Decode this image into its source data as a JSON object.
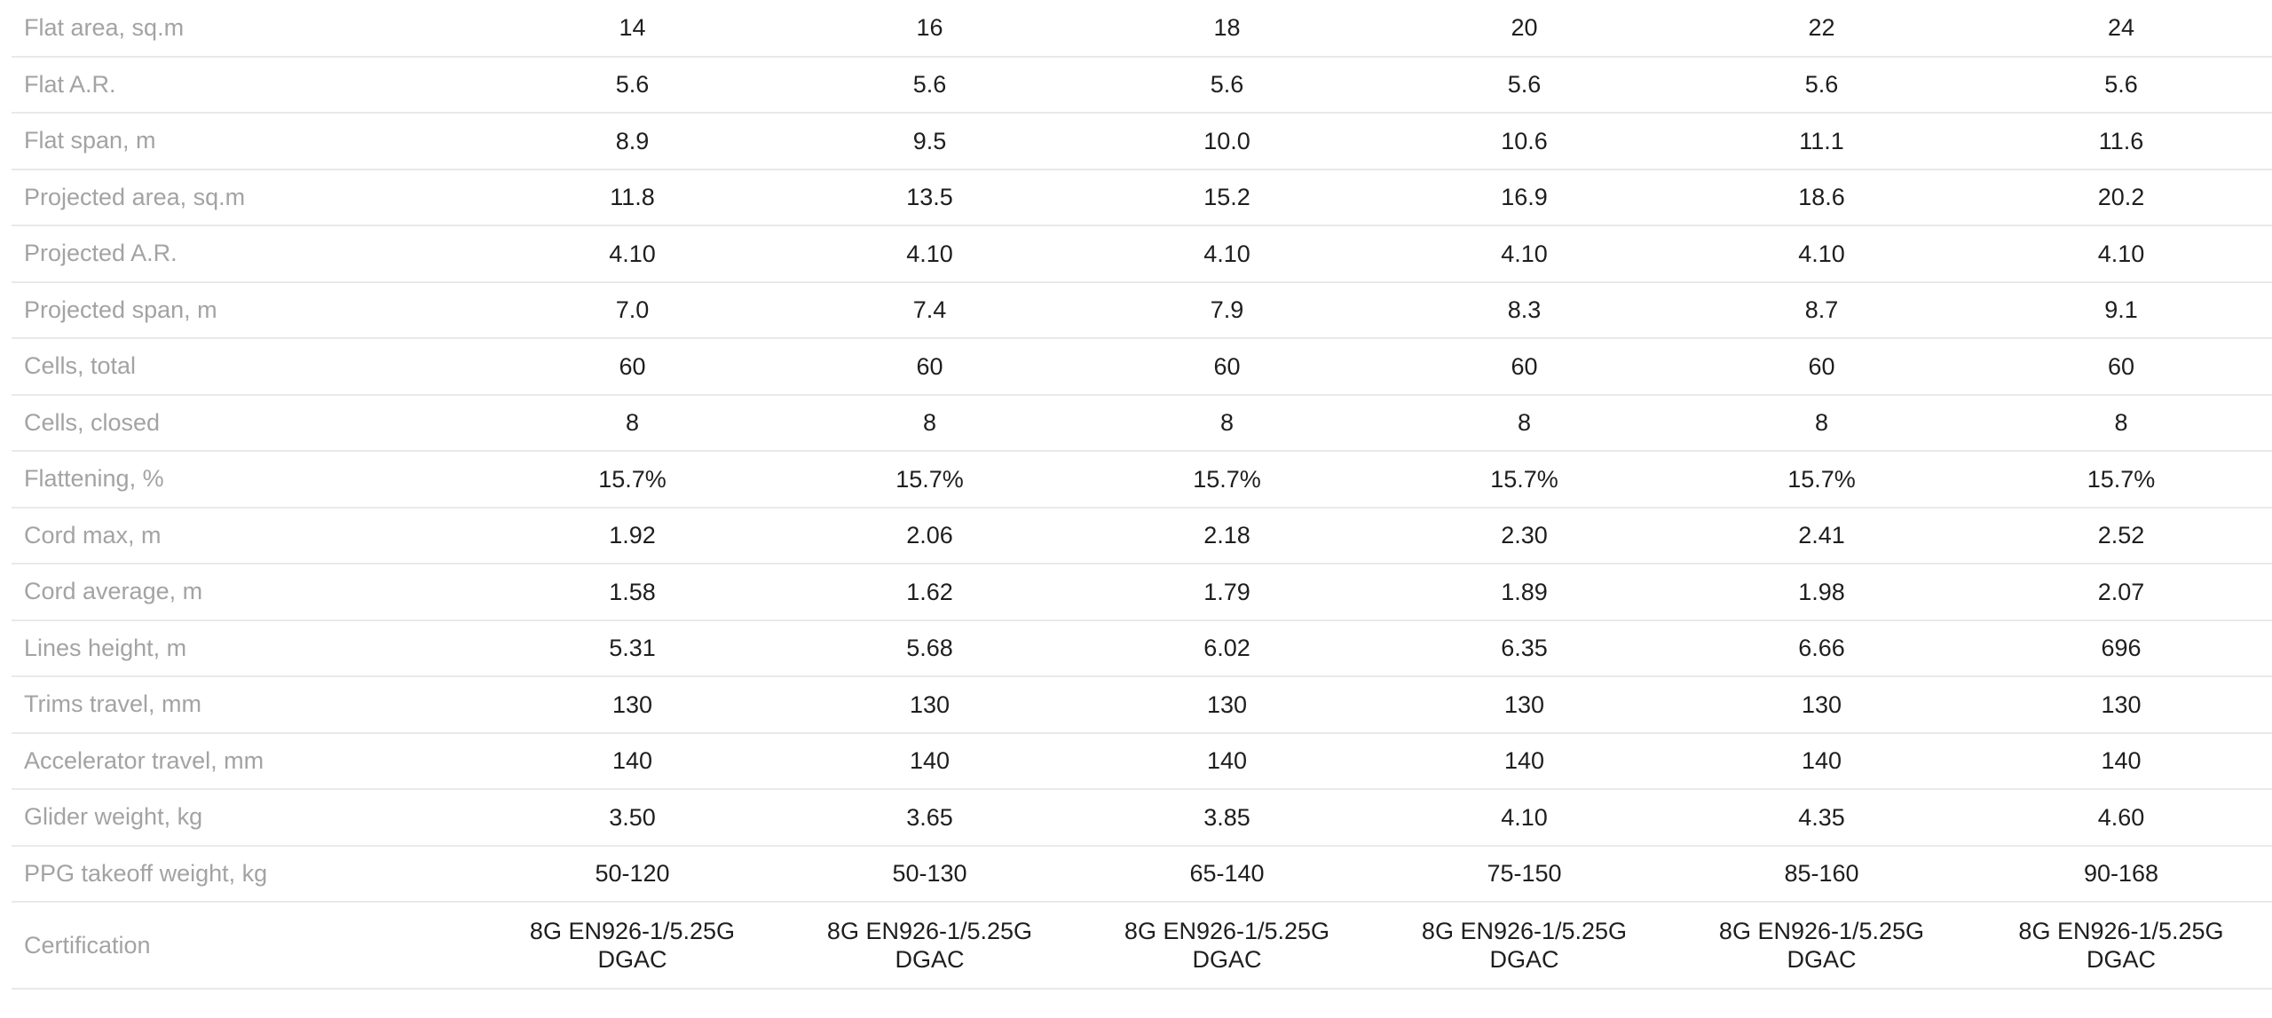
{
  "table": {
    "rows": [
      {
        "label": "Flat area, sq.m",
        "values": [
          "14",
          "16",
          "18",
          "20",
          "22",
          "24"
        ]
      },
      {
        "label": "Flat A.R.",
        "values": [
          "5.6",
          "5.6",
          "5.6",
          "5.6",
          "5.6",
          "5.6"
        ]
      },
      {
        "label": "Flat span, m",
        "values": [
          "8.9",
          "9.5",
          "10.0",
          "10.6",
          "11.1",
          "11.6"
        ]
      },
      {
        "label": "Projected area, sq.m",
        "values": [
          "11.8",
          "13.5",
          "15.2",
          "16.9",
          "18.6",
          "20.2"
        ]
      },
      {
        "label": "Projected A.R.",
        "values": [
          "4.10",
          "4.10",
          "4.10",
          "4.10",
          "4.10",
          "4.10"
        ]
      },
      {
        "label": "Projected span, m",
        "values": [
          "7.0",
          "7.4",
          "7.9",
          "8.3",
          "8.7",
          "9.1"
        ]
      },
      {
        "label": "Cells, total",
        "values": [
          "60",
          "60",
          "60",
          "60",
          "60",
          "60"
        ]
      },
      {
        "label": "Cells, closed",
        "values": [
          "8",
          "8",
          "8",
          "8",
          "8",
          "8"
        ]
      },
      {
        "label": "Flattening, %",
        "values": [
          "15.7%",
          "15.7%",
          "15.7%",
          "15.7%",
          "15.7%",
          "15.7%"
        ]
      },
      {
        "label": "Cord max, m",
        "values": [
          "1.92",
          "2.06",
          "2.18",
          "2.30",
          "2.41",
          "2.52"
        ]
      },
      {
        "label": "Cord average, m",
        "values": [
          "1.58",
          "1.62",
          "1.79",
          "1.89",
          "1.98",
          "2.07"
        ]
      },
      {
        "label": "Lines height, m",
        "values": [
          "5.31",
          "5.68",
          "6.02",
          "6.35",
          "6.66",
          "696"
        ]
      },
      {
        "label": "Trims travel, mm",
        "values": [
          "130",
          "130",
          "130",
          "130",
          "130",
          "130"
        ]
      },
      {
        "label": "Accelerator travel, mm",
        "values": [
          "140",
          "140",
          "140",
          "140",
          "140",
          "140"
        ]
      },
      {
        "label": "Glider weight, kg",
        "values": [
          "3.50",
          "3.65",
          "3.85",
          "4.10",
          "4.35",
          "4.60"
        ]
      },
      {
        "label": "PPG takeoff weight, kg",
        "values": [
          "50-120",
          "50-130",
          "65-140",
          "75-150",
          "85-160",
          "90-168"
        ]
      }
    ],
    "certification": {
      "label": "Certification",
      "values": [
        {
          "line1": "8G EN926-1/5.25G",
          "line2": "DGAC"
        },
        {
          "line1": "8G EN926-1/5.25G",
          "line2": "DGAC"
        },
        {
          "line1": "8G EN926-1/5.25G",
          "line2": "DGAC"
        },
        {
          "line1": "8G EN926-1/5.25G",
          "line2": "DGAC"
        },
        {
          "line1": "8G EN926-1/5.25G",
          "line2": "DGAC"
        },
        {
          "line1": "8G EN926-1/5.25G",
          "line2": "DGAC"
        }
      ]
    }
  }
}
